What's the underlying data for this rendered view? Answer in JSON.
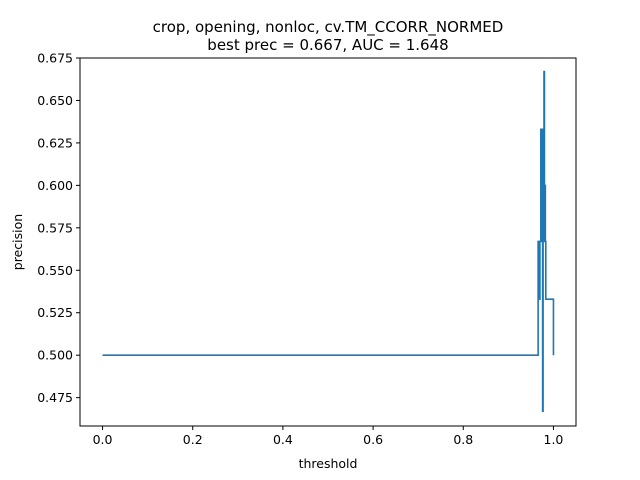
{
  "chart_data": {
    "type": "line",
    "title": "crop, opening, nonloc, cv.TM_CCORR_NORMED",
    "subtitle": "best prec = 0.667, AUC = 1.648",
    "xlabel": "threshold",
    "ylabel": "precision",
    "xlim": [
      -0.05,
      1.05
    ],
    "ylim": [
      0.4583,
      0.675
    ],
    "xticks": [
      "0.0",
      "0.2",
      "0.4",
      "0.6",
      "0.8",
      "1.0"
    ],
    "yticks": [
      "0.475",
      "0.500",
      "0.525",
      "0.550",
      "0.575",
      "0.600",
      "0.625",
      "0.650",
      "0.675"
    ],
    "grid": false,
    "line_color": "#1f77b4",
    "series": [
      {
        "x": [
          0.0,
          0.966,
          0.966,
          0.968,
          0.968,
          0.97,
          0.97,
          0.972,
          0.972,
          0.974,
          0.974,
          0.976,
          0.976,
          0.977,
          0.977,
          0.978,
          0.978,
          0.979,
          0.979,
          0.98,
          0.98,
          0.981,
          0.981,
          0.982,
          0.982,
          0.983,
          0.983,
          0.985,
          0.985,
          1.0,
          1.0
        ],
        "y": [
          0.5,
          0.5,
          0.567,
          0.567,
          0.533,
          0.533,
          0.567,
          0.567,
          0.633,
          0.633,
          0.567,
          0.567,
          0.467,
          0.467,
          0.633,
          0.633,
          0.6,
          0.6,
          0.667,
          0.667,
          0.567,
          0.567,
          0.6,
          0.6,
          0.567,
          0.567,
          0.533,
          0.533,
          0.533,
          0.533,
          0.5
        ]
      }
    ]
  }
}
